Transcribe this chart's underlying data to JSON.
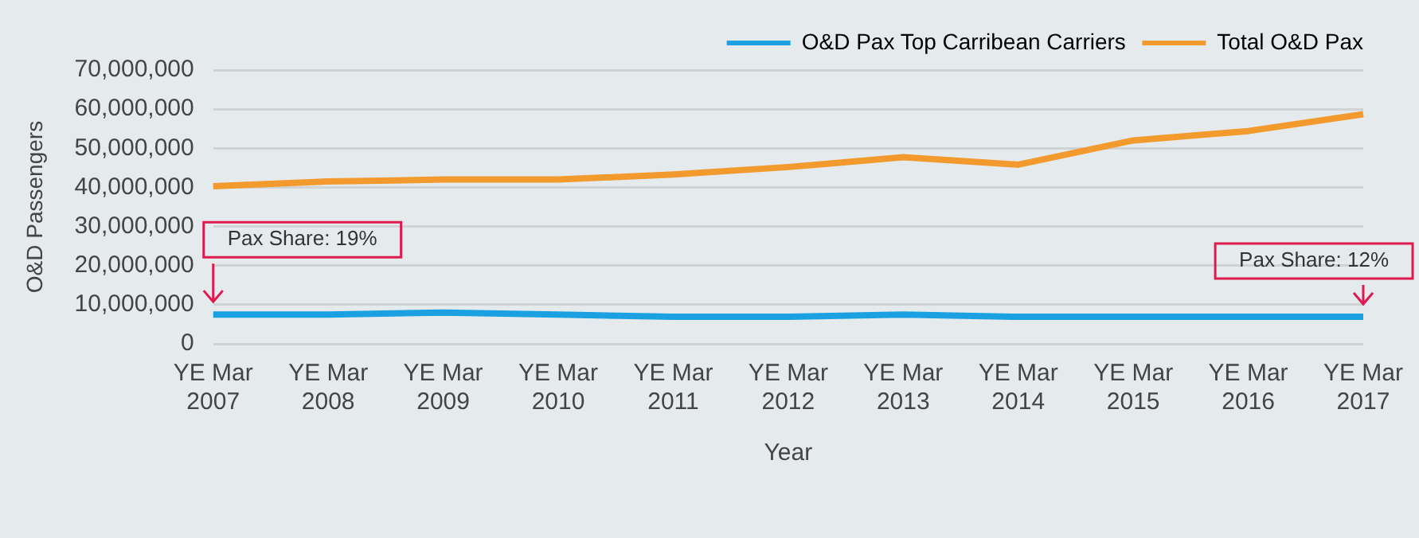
{
  "chart_data": {
    "type": "line",
    "xlabel": "Year",
    "ylabel": "O&D Passengers",
    "categories": [
      "YE Mar 2007",
      "YE Mar 2008",
      "YE Mar 2009",
      "YE Mar 2010",
      "YE Mar 2011",
      "YE Mar 2012",
      "YE Mar 2013",
      "YE Mar 2014",
      "YE Mar 2015",
      "YE Mar 2016",
      "YE Mar 2017"
    ],
    "series": [
      {
        "name": "O&D Pax Top Carribean Carriers",
        "color": "#1ba1e2",
        "values": [
          7500000,
          7500000,
          8000000,
          7500000,
          6900000,
          6900000,
          7500000,
          6900000,
          6900000,
          6900000,
          6900000
        ]
      },
      {
        "name": "Total O&D Pax",
        "color": "#f39a2e",
        "values": [
          40300000,
          41500000,
          42000000,
          42000000,
          43300000,
          45200000,
          47700000,
          45800000,
          52000000,
          54400000,
          58700000
        ]
      }
    ],
    "ylim": [
      0,
      70000000
    ],
    "yticks": [
      0,
      {
        "value": 10000000,
        "label": "10,000,000"
      },
      {
        "value": 20000000,
        "label": "20,000,000"
      },
      {
        "value": 30000000,
        "label": "30,000,000"
      },
      {
        "value": 40000000,
        "label": "40,000,000"
      },
      {
        "value": 50000000,
        "label": "50,000,000"
      },
      {
        "value": 60000000,
        "label": "60,000,000"
      },
      {
        "value": 70000000,
        "label": "70,000,000"
      }
    ],
    "grid": "y",
    "legend": "top right",
    "marker": "none",
    "line_style": "solid",
    "annotations": [
      {
        "text": "Pax Share: 19%",
        "x": "YE Mar 2007",
        "y": 7500000
      },
      {
        "text": "Pax Share: 12%",
        "x": "YE Mar 2017",
        "y": 6900000
      }
    ]
  }
}
